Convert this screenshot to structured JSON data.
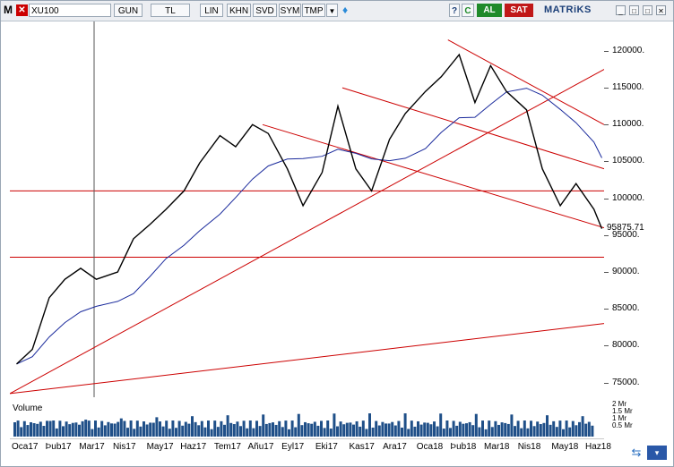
{
  "toolbar": {
    "menu_letter": "M",
    "symbol": "XU100",
    "buttons": [
      "GUN",
      "TL",
      "LIN",
      "KHN",
      "SVD",
      "SYM",
      "TMP"
    ],
    "dropdown_arrow": "▼",
    "icons": [
      "question-icon",
      "refresh-icon",
      "chart-icon",
      "twitter-icon"
    ],
    "buy_label": "AL",
    "sell_label": "SAT",
    "brand": "MATRiKS"
  },
  "chart": {
    "volume_label": "Volume",
    "last_value": "95875.71",
    "price_ticks": [
      "120000.",
      "115000.",
      "110000.",
      "105000.",
      "100000.",
      "95000.",
      "90000.",
      "85000.",
      "80000.",
      "75000."
    ],
    "volume_ticks": [
      "2 Mr",
      "1.5 Mr",
      "1 Mr",
      "0.5 Mr"
    ],
    "time_ticks": [
      "Oca17",
      "Þub17",
      "Mar17",
      "Nis17",
      "May17",
      "Haz17",
      "Tem17",
      "Añu17",
      "Eyl17",
      "Eki17",
      "Kas17",
      "Ara17",
      "Oca18",
      "Þub18",
      "Mar18",
      "Nis18",
      "May18",
      "Haz18"
    ],
    "colors": {
      "price": "#000000",
      "trend": "#cc0000",
      "ma": "#1a2a9c",
      "volume": "#1f4f88",
      "buy": "#1f8a2a",
      "sell": "#c01818"
    }
  },
  "chart_data": {
    "type": "line",
    "series": [
      {
        "name": "XU100",
        "x": [
          "2017-01-03",
          "2017-01-17",
          "2017-02-01",
          "2017-02-15",
          "2017-03-01",
          "2017-03-15",
          "2017-04-03",
          "2017-04-17",
          "2017-05-02",
          "2017-05-16",
          "2017-06-01",
          "2017-06-15",
          "2017-07-03",
          "2017-07-17",
          "2017-08-01",
          "2017-08-15",
          "2017-09-01",
          "2017-09-15",
          "2017-10-02",
          "2017-10-16",
          "2017-11-01",
          "2017-11-15",
          "2017-12-01",
          "2017-12-15",
          "2018-01-02",
          "2018-01-16",
          "2018-02-01",
          "2018-02-15",
          "2018-03-01",
          "2018-03-15",
          "2018-04-02",
          "2018-04-16",
          "2018-05-02",
          "2018-05-16",
          "2018-06-01",
          "2018-06-08"
        ],
        "values": [
          77500,
          79500,
          86500,
          89000,
          90500,
          89000,
          90000,
          94500,
          96500,
          98500,
          101000,
          104800,
          108500,
          107000,
          110000,
          108800,
          104000,
          99000,
          103500,
          112500,
          104000,
          101000,
          108000,
          111500,
          114500,
          116500,
          119500,
          113000,
          118000,
          114500,
          112000,
          104000,
          99000,
          102000,
          98500,
          95876
        ]
      }
    ],
    "xlabel": "",
    "ylabel": "",
    "ylim": [
      73000,
      124000
    ],
    "horizontal_lines": [
      101000,
      92000
    ],
    "grid": false
  }
}
